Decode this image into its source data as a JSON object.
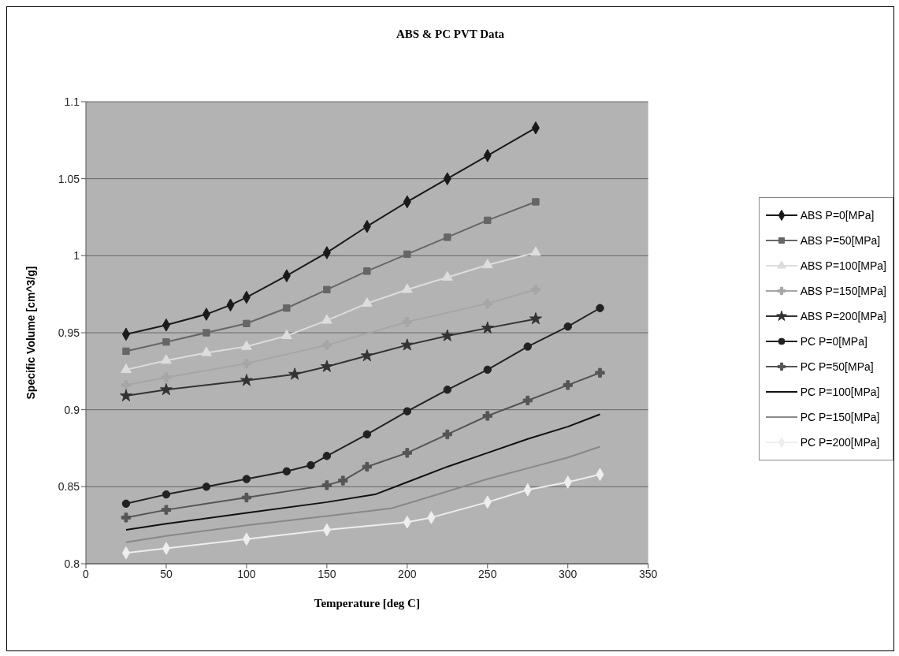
{
  "chart_data": {
    "type": "line",
    "title": "ABS & PC PVT Data",
    "xlabel": "Temperature [deg C]",
    "ylabel": "Specific Volume [cm^3/g]",
    "xlim": [
      0,
      350
    ],
    "xticks": [
      0,
      50,
      100,
      150,
      200,
      250,
      300,
      350
    ],
    "ylim": [
      0.8,
      1.1
    ],
    "yticks": [
      0.8,
      0.85,
      0.9,
      0.95,
      1,
      1.05,
      1.1
    ],
    "grid": "y",
    "legend": "right",
    "series": [
      {
        "name": "ABS P=0[MPa]",
        "color": "#1a1a1a",
        "marker": "diamond",
        "x": [
          25,
          50,
          75,
          90,
          100,
          125,
          150,
          175,
          200,
          225,
          250,
          280
        ],
        "values": [
          0.949,
          0.955,
          0.962,
          0.968,
          0.973,
          0.987,
          1.002,
          1.019,
          1.035,
          1.05,
          1.065,
          1.083
        ]
      },
      {
        "name": "ABS P=50[MPa]",
        "color": "#666666",
        "marker": "square",
        "x": [
          25,
          50,
          75,
          100,
          125,
          150,
          175,
          200,
          225,
          250,
          280
        ],
        "values": [
          0.938,
          0.944,
          0.95,
          0.956,
          0.966,
          0.978,
          0.99,
          1.001,
          1.012,
          1.023,
          1.035
        ]
      },
      {
        "name": "ABS P=100[MPa]",
        "color": "#dddddd",
        "marker": "triangle",
        "x": [
          25,
          50,
          75,
          100,
          125,
          150,
          175,
          200,
          225,
          250,
          280
        ],
        "values": [
          0.926,
          0.932,
          0.937,
          0.941,
          0.948,
          0.958,
          0.969,
          0.978,
          0.986,
          0.994,
          1.002
        ]
      },
      {
        "name": "ABS P=150[MPa]",
        "color": "#a6a6a6",
        "marker": "cross",
        "x": [
          25,
          50,
          100,
          150,
          200,
          250,
          280
        ],
        "values": [
          0.916,
          0.921,
          0.93,
          0.942,
          0.957,
          0.969,
          0.978
        ]
      },
      {
        "name": "ABS P=200[MPa]",
        "color": "#333333",
        "marker": "star",
        "x": [
          25,
          50,
          100,
          130,
          150,
          175,
          200,
          225,
          250,
          280
        ],
        "values": [
          0.909,
          0.913,
          0.919,
          0.923,
          0.928,
          0.935,
          0.942,
          0.948,
          0.953,
          0.959
        ]
      },
      {
        "name": "PC P=0[MPa]",
        "color": "#222222",
        "marker": "circle",
        "x": [
          25,
          50,
          75,
          100,
          125,
          140,
          150,
          175,
          200,
          225,
          250,
          275,
          300,
          320
        ],
        "values": [
          0.839,
          0.845,
          0.85,
          0.855,
          0.86,
          0.864,
          0.87,
          0.884,
          0.899,
          0.913,
          0.926,
          0.941,
          0.954,
          0.966
        ]
      },
      {
        "name": "PC P=50[MPa]",
        "color": "#555555",
        "marker": "cross",
        "x": [
          25,
          50,
          100,
          150,
          160,
          175,
          200,
          225,
          250,
          275,
          300,
          320
        ],
        "values": [
          0.83,
          0.835,
          0.843,
          0.851,
          0.854,
          0.863,
          0.872,
          0.884,
          0.896,
          0.906,
          0.916,
          0.924
        ]
      },
      {
        "name": "PC P=100[MPa]",
        "color": "#111111",
        "marker": "none",
        "x": [
          25,
          50,
          100,
          150,
          180,
          200,
          225,
          250,
          275,
          300,
          320
        ],
        "values": [
          0.822,
          0.826,
          0.833,
          0.84,
          0.845,
          0.853,
          0.863,
          0.872,
          0.881,
          0.889,
          0.897
        ]
      },
      {
        "name": "PC P=150[MPa]",
        "color": "#888888",
        "marker": "none",
        "x": [
          25,
          50,
          100,
          150,
          190,
          200,
          225,
          250,
          275,
          300,
          320
        ],
        "values": [
          0.814,
          0.818,
          0.825,
          0.831,
          0.836,
          0.839,
          0.847,
          0.855,
          0.862,
          0.869,
          0.876
        ]
      },
      {
        "name": "PC P=200[MPa]",
        "color": "#eeeeee",
        "marker": "diamond",
        "x": [
          25,
          50,
          100,
          150,
          200,
          215,
          250,
          275,
          300,
          320
        ],
        "values": [
          0.807,
          0.81,
          0.816,
          0.822,
          0.827,
          0.83,
          0.84,
          0.848,
          0.853,
          0.858
        ]
      }
    ]
  }
}
